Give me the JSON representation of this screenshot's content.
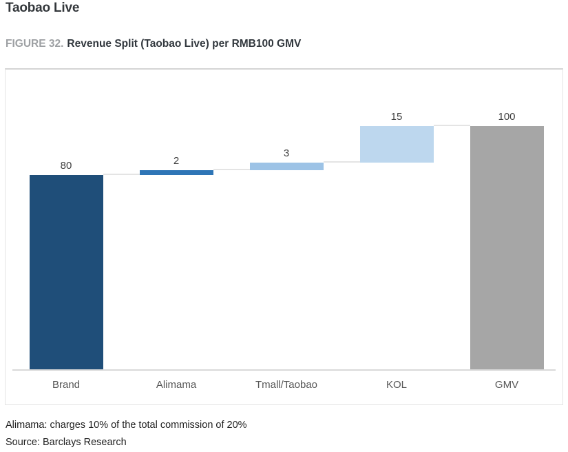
{
  "page": {
    "heading": "Taobao Live",
    "figure_label": "FIGURE 32.",
    "figure_title": "Revenue Split (Taobao Live) per RMB100 GMV",
    "footnote": "Alimama: charges 10% of the total commission of 20%",
    "source": "Source: Barclays Research"
  },
  "chart_data": {
    "type": "bar",
    "subtype": "waterfall",
    "title": "Revenue Split (Taobao Live) per RMB100 GMV",
    "categories": [
      "Brand",
      "Alimama",
      "Tmall/Taobao",
      "KOL",
      "GMV"
    ],
    "values": [
      80,
      2,
      3,
      15,
      100
    ],
    "segments": [
      {
        "category": "Brand",
        "label": "80",
        "start": 0,
        "end": 80,
        "color": "#1f4e79"
      },
      {
        "category": "Alimama",
        "label": "2",
        "start": 80,
        "end": 82,
        "color": "#2e75b6"
      },
      {
        "category": "Tmall/Taobao",
        "label": "3",
        "start": 82,
        "end": 85,
        "color": "#9dc3e6"
      },
      {
        "category": "KOL",
        "label": "15",
        "start": 85,
        "end": 100,
        "color": "#bdd7ee"
      },
      {
        "category": "GMV",
        "label": "100",
        "start": 0,
        "end": 100,
        "color": "#a6a6a6"
      }
    ],
    "xlabel": "",
    "ylabel": "",
    "ylim": [
      0,
      123
    ],
    "grid": false,
    "legend": false,
    "colors": {
      "axis_line": "#d9d9d9",
      "connector": "#e4e4e4",
      "value_label": "#3f3f3f",
      "category_label": "#565656"
    }
  }
}
